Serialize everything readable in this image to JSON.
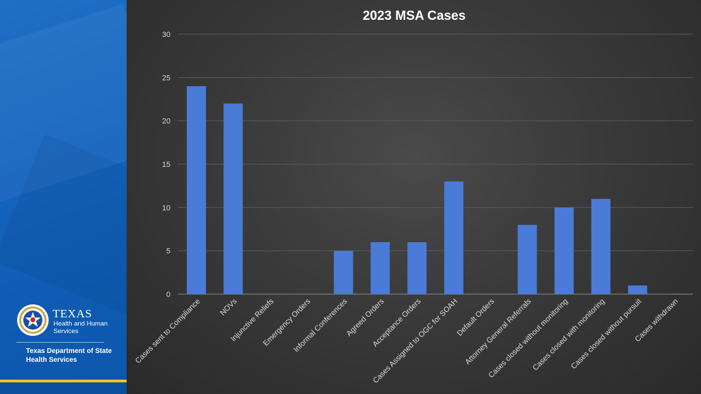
{
  "brand": {
    "texas": "TEXAS",
    "hhs_line1": "Health and Human",
    "hhs_line2": "Services",
    "department": "Texas Department of State Health Services",
    "primary_color": "#1565c0",
    "accent_color": "#f5c518"
  },
  "chart_data": {
    "type": "bar",
    "title": "2023 MSA Cases",
    "xlabel": "",
    "ylabel": "",
    "ylim": [
      0,
      30
    ],
    "yticks": [
      0,
      5,
      10,
      15,
      20,
      25,
      30
    ],
    "grid": true,
    "bar_color": "#4a7bd6",
    "categories": [
      "Cases sent to Compliance",
      "NOVs",
      "Injunctive Reliefs",
      "Emergency Orders",
      "Informal Conferences",
      "Agreed Orders",
      "Acceptance Orders",
      "Cases Assigned to OGC for SOAH",
      "Default Orders",
      "Attorney General Referrals",
      "Cases closed without monitoring",
      "Cases closed with monitoring",
      "Cases closed without pursuit",
      "Cases withdrawn"
    ],
    "values": [
      24,
      22,
      0,
      0,
      5,
      6,
      6,
      13,
      0,
      8,
      10,
      11,
      1,
      0
    ]
  }
}
